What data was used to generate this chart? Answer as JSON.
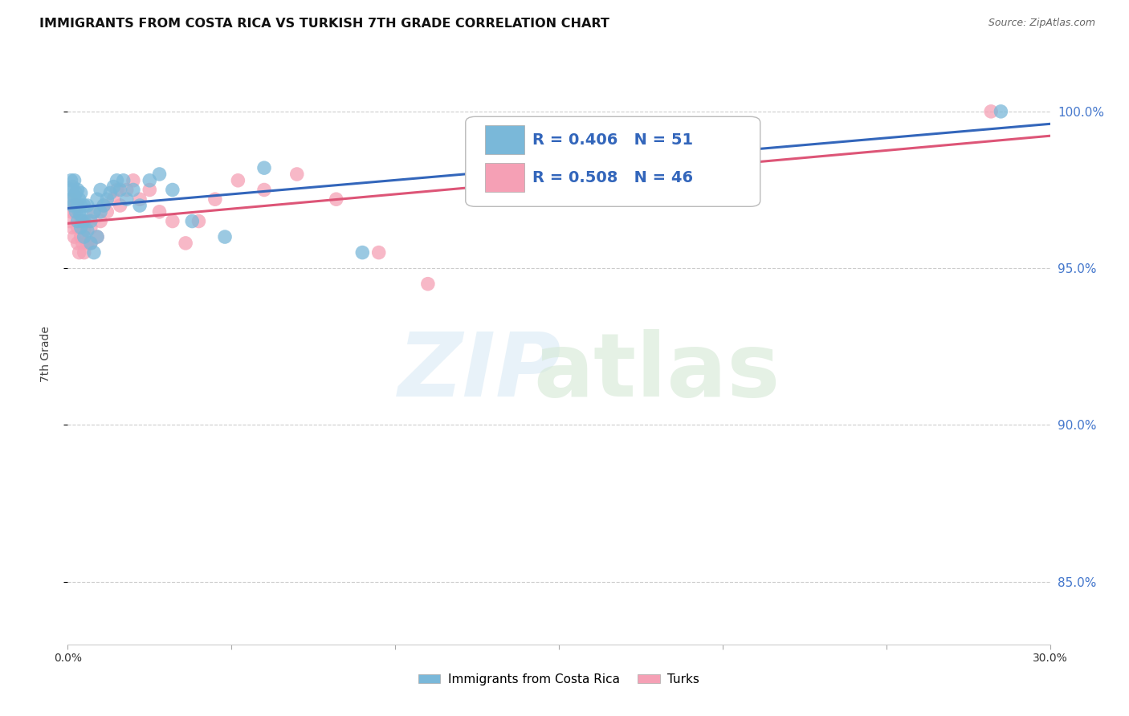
{
  "title": "IMMIGRANTS FROM COSTA RICA VS TURKISH 7TH GRADE CORRELATION CHART",
  "source": "Source: ZipAtlas.com",
  "ylabel": "7th Grade",
  "legend_label_blue": "Immigrants from Costa Rica",
  "legend_label_pink": "Turks",
  "r_blue": 0.406,
  "n_blue": 51,
  "r_pink": 0.508,
  "n_pink": 46,
  "blue_color": "#7ab8d9",
  "pink_color": "#f5a0b5",
  "line_blue": "#3366bb",
  "line_pink": "#dd5577",
  "xlim": [
    0.0,
    0.3
  ],
  "ylim": [
    83.0,
    101.5
  ],
  "yticks": [
    85.0,
    90.0,
    95.0,
    100.0
  ],
  "xticks": [
    0.0,
    0.05,
    0.1,
    0.15,
    0.2,
    0.25,
    0.3
  ],
  "blue_x": [
    0.0005,
    0.001,
    0.001,
    0.0015,
    0.0015,
    0.002,
    0.002,
    0.0025,
    0.0025,
    0.003,
    0.003,
    0.003,
    0.0035,
    0.0035,
    0.004,
    0.004,
    0.004,
    0.004,
    0.0045,
    0.005,
    0.005,
    0.005,
    0.006,
    0.006,
    0.007,
    0.007,
    0.008,
    0.008,
    0.009,
    0.009,
    0.01,
    0.01,
    0.011,
    0.012,
    0.013,
    0.014,
    0.015,
    0.016,
    0.017,
    0.018,
    0.02,
    0.022,
    0.025,
    0.028,
    0.032,
    0.038,
    0.048,
    0.06,
    0.09,
    0.155,
    0.285
  ],
  "blue_y": [
    97.2,
    97.5,
    97.8,
    97.0,
    97.6,
    97.3,
    97.8,
    96.8,
    97.4,
    96.5,
    97.0,
    97.5,
    96.8,
    97.2,
    96.3,
    96.7,
    97.0,
    97.4,
    96.5,
    96.0,
    96.5,
    97.0,
    96.2,
    97.0,
    95.8,
    96.5,
    95.5,
    96.8,
    96.0,
    97.2,
    96.8,
    97.5,
    97.0,
    97.2,
    97.4,
    97.6,
    97.8,
    97.5,
    97.8,
    97.2,
    97.5,
    97.0,
    97.8,
    98.0,
    97.5,
    96.5,
    96.0,
    98.2,
    95.5,
    98.5,
    100.0
  ],
  "pink_x": [
    0.0005,
    0.001,
    0.001,
    0.0015,
    0.002,
    0.002,
    0.0025,
    0.003,
    0.003,
    0.003,
    0.0035,
    0.004,
    0.004,
    0.0045,
    0.005,
    0.005,
    0.006,
    0.006,
    0.007,
    0.007,
    0.008,
    0.009,
    0.01,
    0.011,
    0.012,
    0.014,
    0.015,
    0.016,
    0.018,
    0.02,
    0.022,
    0.025,
    0.028,
    0.032,
    0.036,
    0.04,
    0.045,
    0.052,
    0.06,
    0.07,
    0.082,
    0.095,
    0.11,
    0.15,
    0.2,
    0.282
  ],
  "pink_y": [
    96.5,
    96.8,
    97.2,
    96.3,
    96.0,
    96.8,
    97.0,
    95.8,
    96.3,
    97.0,
    95.5,
    96.0,
    96.5,
    95.8,
    95.5,
    96.2,
    95.8,
    96.5,
    95.8,
    96.3,
    96.8,
    96.0,
    96.5,
    97.0,
    96.8,
    97.2,
    97.5,
    97.0,
    97.5,
    97.8,
    97.2,
    97.5,
    96.8,
    96.5,
    95.8,
    96.5,
    97.2,
    97.8,
    97.5,
    98.0,
    97.2,
    95.5,
    94.5,
    97.8,
    98.5,
    100.0
  ]
}
